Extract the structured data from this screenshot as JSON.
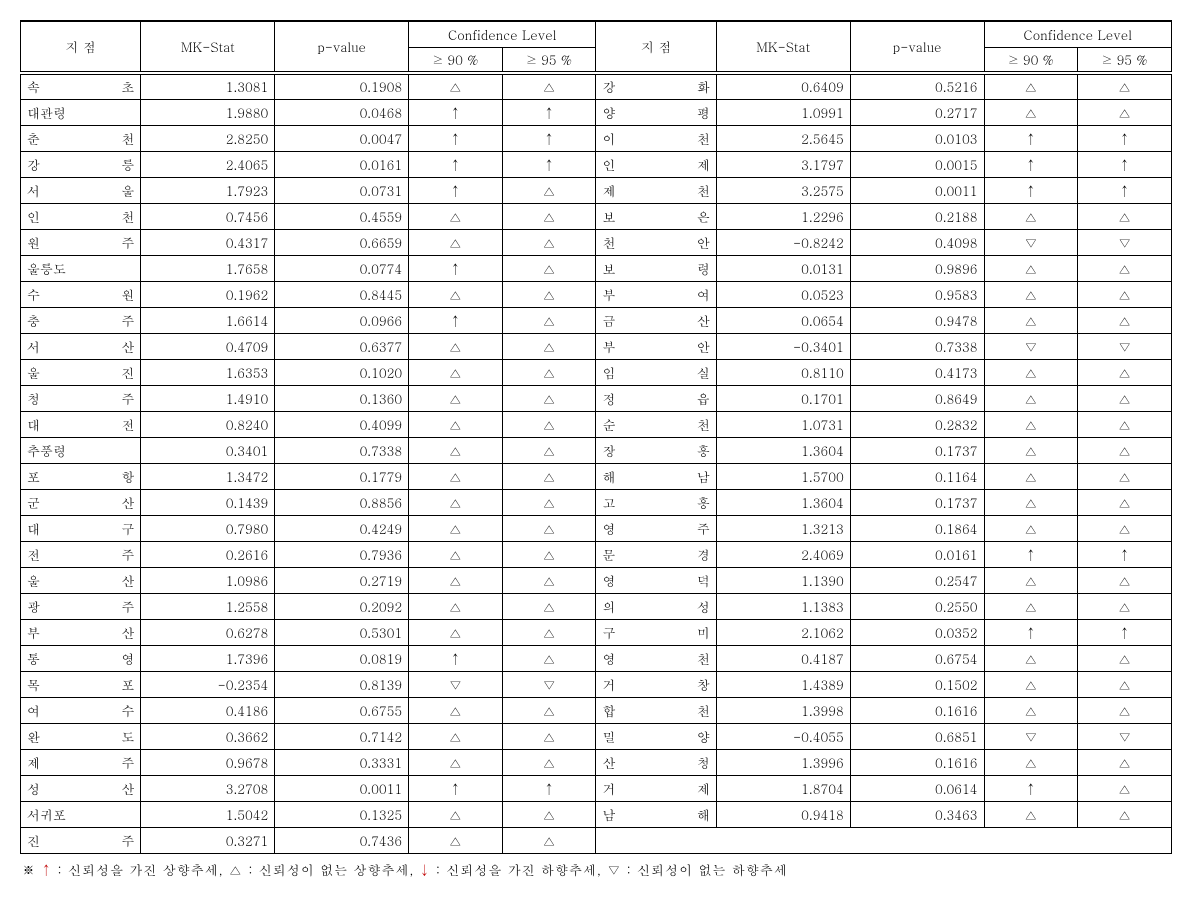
{
  "headers": {
    "station": "지  점",
    "mkstat": "MK-Stat",
    "pvalue": "p-value",
    "conf_group": "Confidence Level",
    "conf90": "≥ 90 %",
    "conf95": "≥ 95 %"
  },
  "symbols": {
    "up_sig": "↑",
    "up_nosig": "△",
    "down_sig": "↓",
    "down_nosig": "▽"
  },
  "footnote_parts": {
    "prefix": "※ ",
    "s1": " : 신뢰성을 가진 상향추세, ",
    "s2": " : 신뢰성이 없는 상향추세, ",
    "s3": " : 신뢰성을 가진 하향추세, ",
    "s4": " : 신뢰성이 없는 하향추세"
  },
  "left": [
    {
      "st": "속  초",
      "mk": "1.3081",
      "p": "0.1908",
      "c90": "up_nosig",
      "c95": "up_nosig"
    },
    {
      "st": "대관령",
      "mk": "1.9880",
      "p": "0.0468",
      "c90": "up_sig",
      "c95": "up_sig"
    },
    {
      "st": "춘  천",
      "mk": "2.8250",
      "p": "0.0047",
      "c90": "up_sig",
      "c95": "up_sig"
    },
    {
      "st": "강  릉",
      "mk": "2.4065",
      "p": "0.0161",
      "c90": "up_sig",
      "c95": "up_sig"
    },
    {
      "st": "서  울",
      "mk": "1.7923",
      "p": "0.0731",
      "c90": "up_sig",
      "c95": "up_nosig"
    },
    {
      "st": "인  천",
      "mk": "0.7456",
      "p": "0.4559",
      "c90": "up_nosig",
      "c95": "up_nosig"
    },
    {
      "st": "원  주",
      "mk": "0.4317",
      "p": "0.6659",
      "c90": "up_nosig",
      "c95": "up_nosig"
    },
    {
      "st": "울릉도",
      "mk": "1.7658",
      "p": "0.0774",
      "c90": "up_sig",
      "c95": "up_nosig"
    },
    {
      "st": "수  원",
      "mk": "0.1962",
      "p": "0.8445",
      "c90": "up_nosig",
      "c95": "up_nosig"
    },
    {
      "st": "충  주",
      "mk": "1.6614",
      "p": "0.0966",
      "c90": "up_sig",
      "c95": "up_nosig"
    },
    {
      "st": "서  산",
      "mk": "0.4709",
      "p": "0.6377",
      "c90": "up_nosig",
      "c95": "up_nosig"
    },
    {
      "st": "울  진",
      "mk": "1.6353",
      "p": "0.1020",
      "c90": "up_nosig",
      "c95": "up_nosig"
    },
    {
      "st": "청  주",
      "mk": "1.4910",
      "p": "0.1360",
      "c90": "up_nosig",
      "c95": "up_nosig"
    },
    {
      "st": "대  전",
      "mk": "0.8240",
      "p": "0.4099",
      "c90": "up_nosig",
      "c95": "up_nosig"
    },
    {
      "st": "추풍령",
      "mk": "0.3401",
      "p": "0.7338",
      "c90": "up_nosig",
      "c95": "up_nosig"
    },
    {
      "st": "포  항",
      "mk": "1.3472",
      "p": "0.1779",
      "c90": "up_nosig",
      "c95": "up_nosig"
    },
    {
      "st": "군  산",
      "mk": "0.1439",
      "p": "0.8856",
      "c90": "up_nosig",
      "c95": "up_nosig"
    },
    {
      "st": "대  구",
      "mk": "0.7980",
      "p": "0.4249",
      "c90": "up_nosig",
      "c95": "up_nosig"
    },
    {
      "st": "전  주",
      "mk": "0.2616",
      "p": "0.7936",
      "c90": "up_nosig",
      "c95": "up_nosig"
    },
    {
      "st": "울  산",
      "mk": "1.0986",
      "p": "0.2719",
      "c90": "up_nosig",
      "c95": "up_nosig"
    },
    {
      "st": "광  주",
      "mk": "1.2558",
      "p": "0.2092",
      "c90": "up_nosig",
      "c95": "up_nosig"
    },
    {
      "st": "부  산",
      "mk": "0.6278",
      "p": "0.5301",
      "c90": "up_nosig",
      "c95": "up_nosig"
    },
    {
      "st": "통  영",
      "mk": "1.7396",
      "p": "0.0819",
      "c90": "up_sig",
      "c95": "up_nosig"
    },
    {
      "st": "목  포",
      "mk": "-0.2354",
      "p": "0.8139",
      "c90": "down_nosig",
      "c95": "down_nosig"
    },
    {
      "st": "여  수",
      "mk": "0.4186",
      "p": "0.6755",
      "c90": "up_nosig",
      "c95": "up_nosig"
    },
    {
      "st": "완  도",
      "mk": "0.3662",
      "p": "0.7142",
      "c90": "up_nosig",
      "c95": "up_nosig"
    },
    {
      "st": "제  주",
      "mk": "0.9678",
      "p": "0.3331",
      "c90": "up_nosig",
      "c95": "up_nosig"
    },
    {
      "st": "성  산",
      "mk": "3.2708",
      "p": "0.0011",
      "c90": "up_sig",
      "c95": "up_sig"
    },
    {
      "st": "서귀포",
      "mk": "1.5042",
      "p": "0.1325",
      "c90": "up_nosig",
      "c95": "up_nosig"
    },
    {
      "st": "진  주",
      "mk": "0.3271",
      "p": "0.7436",
      "c90": "up_nosig",
      "c95": "up_nosig"
    }
  ],
  "right": [
    {
      "st": "강  화",
      "mk": "0.6409",
      "p": "0.5216",
      "c90": "up_nosig",
      "c95": "up_nosig"
    },
    {
      "st": "양  평",
      "mk": "1.0991",
      "p": "0.2717",
      "c90": "up_nosig",
      "c95": "up_nosig"
    },
    {
      "st": "이  천",
      "mk": "2.5645",
      "p": "0.0103",
      "c90": "up_sig",
      "c95": "up_sig"
    },
    {
      "st": "인  제",
      "mk": "3.1797",
      "p": "0.0015",
      "c90": "up_sig",
      "c95": "up_sig"
    },
    {
      "st": "제  천",
      "mk": "3.2575",
      "p": "0.0011",
      "c90": "up_sig",
      "c95": "up_sig"
    },
    {
      "st": "보  은",
      "mk": "1.2296",
      "p": "0.2188",
      "c90": "up_nosig",
      "c95": "up_nosig"
    },
    {
      "st": "천  안",
      "mk": "-0.8242",
      "p": "0.4098",
      "c90": "down_nosig",
      "c95": "down_nosig"
    },
    {
      "st": "보  령",
      "mk": "0.0131",
      "p": "0.9896",
      "c90": "up_nosig",
      "c95": "up_nosig"
    },
    {
      "st": "부  여",
      "mk": "0.0523",
      "p": "0.9583",
      "c90": "up_nosig",
      "c95": "up_nosig"
    },
    {
      "st": "금  산",
      "mk": "0.0654",
      "p": "0.9478",
      "c90": "up_nosig",
      "c95": "up_nosig"
    },
    {
      "st": "부  안",
      "mk": "-0.3401",
      "p": "0.7338",
      "c90": "down_nosig",
      "c95": "down_nosig"
    },
    {
      "st": "임  실",
      "mk": "0.8110",
      "p": "0.4173",
      "c90": "up_nosig",
      "c95": "up_nosig"
    },
    {
      "st": "정  읍",
      "mk": "0.1701",
      "p": "0.8649",
      "c90": "up_nosig",
      "c95": "up_nosig"
    },
    {
      "st": "순  천",
      "mk": "1.0731",
      "p": "0.2832",
      "c90": "up_nosig",
      "c95": "up_nosig"
    },
    {
      "st": "장  흥",
      "mk": "1.3604",
      "p": "0.1737",
      "c90": "up_nosig",
      "c95": "up_nosig"
    },
    {
      "st": "해  남",
      "mk": "1.5700",
      "p": "0.1164",
      "c90": "up_nosig",
      "c95": "up_nosig"
    },
    {
      "st": "고  흥",
      "mk": "1.3604",
      "p": "0.1737",
      "c90": "up_nosig",
      "c95": "up_nosig"
    },
    {
      "st": "영  주",
      "mk": "1.3213",
      "p": "0.1864",
      "c90": "up_nosig",
      "c95": "up_nosig"
    },
    {
      "st": "문  경",
      "mk": "2.4069",
      "p": "0.0161",
      "c90": "up_sig",
      "c95": "up_sig"
    },
    {
      "st": "영  덕",
      "mk": "1.1390",
      "p": "0.2547",
      "c90": "up_nosig",
      "c95": "up_nosig"
    },
    {
      "st": "의  성",
      "mk": "1.1383",
      "p": "0.2550",
      "c90": "up_nosig",
      "c95": "up_nosig"
    },
    {
      "st": "구  미",
      "mk": "2.1062",
      "p": "0.0352",
      "c90": "up_sig",
      "c95": "up_sig"
    },
    {
      "st": "영  천",
      "mk": "0.4187",
      "p": "0.6754",
      "c90": "up_nosig",
      "c95": "up_nosig"
    },
    {
      "st": "거  창",
      "mk": "1.4389",
      "p": "0.1502",
      "c90": "up_nosig",
      "c95": "up_nosig"
    },
    {
      "st": "합  천",
      "mk": "1.3998",
      "p": "0.1616",
      "c90": "up_nosig",
      "c95": "up_nosig"
    },
    {
      "st": "밀  양",
      "mk": "-0.4055",
      "p": "0.6851",
      "c90": "down_nosig",
      "c95": "down_nosig"
    },
    {
      "st": "산  청",
      "mk": "1.3996",
      "p": "0.1616",
      "c90": "up_nosig",
      "c95": "up_nosig"
    },
    {
      "st": "거  제",
      "mk": "1.8704",
      "p": "0.0614",
      "c90": "up_sig",
      "c95": "up_nosig"
    },
    {
      "st": "남  해",
      "mk": "0.9418",
      "p": "0.3463",
      "c90": "up_nosig",
      "c95": "up_nosig"
    }
  ]
}
